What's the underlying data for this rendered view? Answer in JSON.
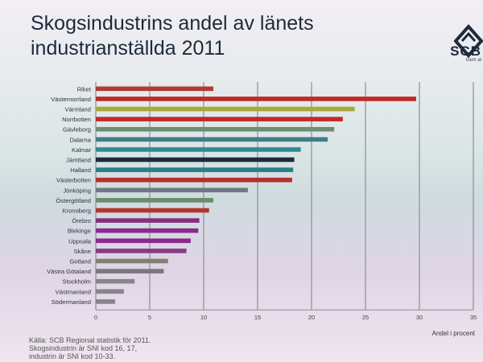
{
  "title_line1": "Skogsindustrins andel av länets",
  "title_line2": "industrianställda 2011",
  "logo": {
    "text": "SCB",
    "subtext": "Gem al",
    "icon": "scb-logo-icon"
  },
  "footnote": {
    "line1": "Källa: SCB Regional statistik för 2011.",
    "line2": "Skogsindustrin är SNI kod 16, 17,",
    "line3": "industrin är SNI kod 10-33."
  },
  "chart_data": {
    "type": "bar",
    "orientation": "horizontal",
    "title": "Skogsindustrins andel av länets industrianställda 2011",
    "xlabel": "Andel i procent",
    "ylabel": "",
    "xlim": [
      0,
      35
    ],
    "xticks": [
      0,
      5,
      10,
      15,
      20,
      25,
      30,
      35
    ],
    "grid": "vertical",
    "legend": "none",
    "categories": [
      "Riket",
      "Västernorrland",
      "Värmland",
      "Norrbotten",
      "Gävleborg",
      "Dalarna",
      "Kalmar",
      "Jämtland",
      "Halland",
      "Västerbotten",
      "Jönköping",
      "Östergötland",
      "Kronoberg",
      "Örebro",
      "Blekinge",
      "Uppsala",
      "Skåne",
      "Gotland",
      "Västra Götaland",
      "Stockholm",
      "Västmanland",
      "Södermanland"
    ],
    "values": [
      10.9,
      29.7,
      24.0,
      22.9,
      22.1,
      21.5,
      19.0,
      18.4,
      18.3,
      18.2,
      14.1,
      10.9,
      10.5,
      9.6,
      9.5,
      8.8,
      8.4,
      6.7,
      6.3,
      3.6,
      2.6,
      1.8
    ],
    "colors": [
      "#b23a32",
      "#c0292b",
      "#a8a83c",
      "#c22a2a",
      "#6e8c76",
      "#3e7f86",
      "#2f8a98",
      "#1e2a3a",
      "#2c7d86",
      "#b6302c",
      "#707880",
      "#6a8c70",
      "#b2382e",
      "#852e80",
      "#8a2a8c",
      "#8a2a8c",
      "#8a3a86",
      "#857e76",
      "#78787e",
      "#85858a",
      "#85858a",
      "#85858a"
    ]
  }
}
